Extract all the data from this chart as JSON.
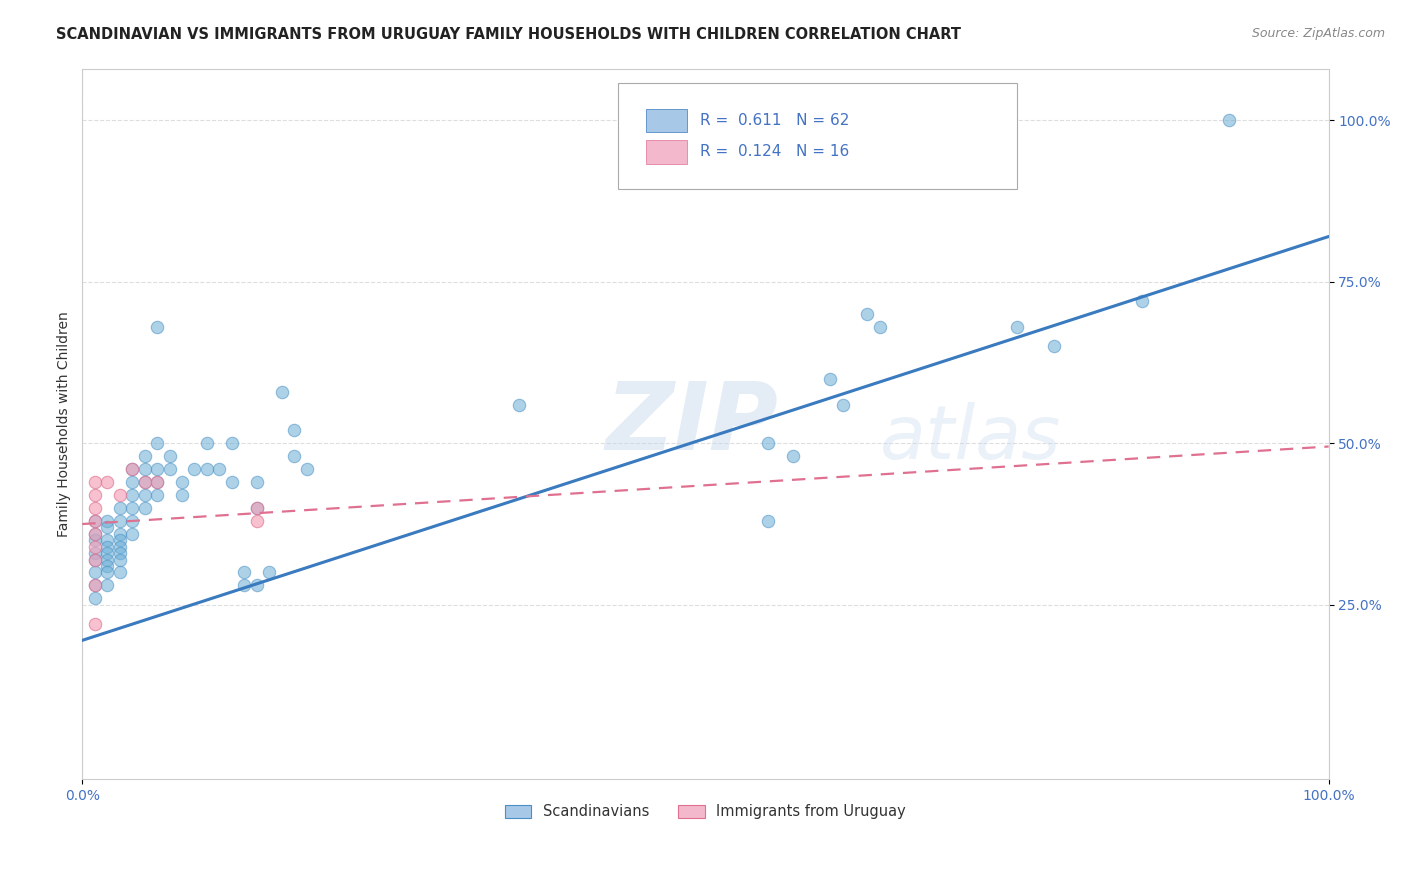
{
  "title": "SCANDINAVIAN VS IMMIGRANTS FROM URUGUAY FAMILY HOUSEHOLDS WITH CHILDREN CORRELATION CHART",
  "source_text": "Source: ZipAtlas.com",
  "ylabel": "Family Households with Children",
  "xlim": [
    0,
    1.0
  ],
  "ylim": [
    -0.02,
    1.08
  ],
  "watermark_zip": "ZIP",
  "watermark_atlas": "atlas",
  "blue_scatter": [
    [
      0.01,
      0.38
    ],
    [
      0.01,
      0.36
    ],
    [
      0.01,
      0.35
    ],
    [
      0.01,
      0.33
    ],
    [
      0.01,
      0.32
    ],
    [
      0.01,
      0.3
    ],
    [
      0.01,
      0.28
    ],
    [
      0.01,
      0.26
    ],
    [
      0.02,
      0.38
    ],
    [
      0.02,
      0.37
    ],
    [
      0.02,
      0.35
    ],
    [
      0.02,
      0.34
    ],
    [
      0.02,
      0.33
    ],
    [
      0.02,
      0.32
    ],
    [
      0.02,
      0.31
    ],
    [
      0.02,
      0.3
    ],
    [
      0.02,
      0.28
    ],
    [
      0.03,
      0.4
    ],
    [
      0.03,
      0.38
    ],
    [
      0.03,
      0.36
    ],
    [
      0.03,
      0.35
    ],
    [
      0.03,
      0.34
    ],
    [
      0.03,
      0.33
    ],
    [
      0.03,
      0.32
    ],
    [
      0.03,
      0.3
    ],
    [
      0.04,
      0.46
    ],
    [
      0.04,
      0.44
    ],
    [
      0.04,
      0.42
    ],
    [
      0.04,
      0.4
    ],
    [
      0.04,
      0.38
    ],
    [
      0.04,
      0.36
    ],
    [
      0.05,
      0.48
    ],
    [
      0.05,
      0.46
    ],
    [
      0.05,
      0.44
    ],
    [
      0.05,
      0.42
    ],
    [
      0.05,
      0.4
    ],
    [
      0.06,
      0.5
    ],
    [
      0.06,
      0.46
    ],
    [
      0.06,
      0.44
    ],
    [
      0.06,
      0.42
    ],
    [
      0.07,
      0.48
    ],
    [
      0.07,
      0.46
    ],
    [
      0.08,
      0.44
    ],
    [
      0.08,
      0.42
    ],
    [
      0.09,
      0.46
    ],
    [
      0.1,
      0.5
    ],
    [
      0.1,
      0.46
    ],
    [
      0.11,
      0.46
    ],
    [
      0.12,
      0.5
    ],
    [
      0.12,
      0.44
    ],
    [
      0.13,
      0.3
    ],
    [
      0.13,
      0.28
    ],
    [
      0.14,
      0.44
    ],
    [
      0.14,
      0.4
    ],
    [
      0.14,
      0.28
    ],
    [
      0.15,
      0.3
    ],
    [
      0.16,
      0.58
    ],
    [
      0.17,
      0.52
    ],
    [
      0.17,
      0.48
    ],
    [
      0.18,
      0.46
    ],
    [
      0.06,
      0.68
    ],
    [
      0.55,
      0.5
    ],
    [
      0.57,
      0.48
    ],
    [
      0.6,
      0.6
    ],
    [
      0.61,
      0.56
    ],
    [
      0.63,
      0.7
    ],
    [
      0.64,
      0.68
    ],
    [
      0.92,
      1.0
    ],
    [
      0.55,
      0.38
    ],
    [
      0.35,
      0.56
    ],
    [
      0.75,
      0.68
    ],
    [
      0.78,
      0.65
    ],
    [
      0.85,
      0.72
    ]
  ],
  "pink_scatter": [
    [
      0.01,
      0.44
    ],
    [
      0.01,
      0.42
    ],
    [
      0.01,
      0.4
    ],
    [
      0.01,
      0.38
    ],
    [
      0.01,
      0.36
    ],
    [
      0.01,
      0.34
    ],
    [
      0.01,
      0.32
    ],
    [
      0.01,
      0.28
    ],
    [
      0.01,
      0.22
    ],
    [
      0.02,
      0.44
    ],
    [
      0.03,
      0.42
    ],
    [
      0.04,
      0.46
    ],
    [
      0.05,
      0.44
    ],
    [
      0.06,
      0.44
    ],
    [
      0.14,
      0.4
    ],
    [
      0.14,
      0.38
    ]
  ],
  "blue_line_x0": 0.0,
  "blue_line_x1": 1.0,
  "blue_line_y0": 0.195,
  "blue_line_y1": 0.82,
  "pink_line_x0": 0.0,
  "pink_line_x1": 1.0,
  "pink_line_y0": 0.375,
  "pink_line_y1": 0.495,
  "blue_scatter_color": "#6baed6",
  "blue_scatter_edge": "#4a90c4",
  "pink_scatter_color": "#f4a0b8",
  "pink_scatter_edge": "#e07090",
  "blue_line_color": "#3a7abf",
  "pink_line_color": "#e07090",
  "legend_blue_face": "#a8c8e8",
  "legend_pink_face": "#f4b8cc",
  "grid_color": "#c8c8c8",
  "title_color": "#222222",
  "label_color": "#4472c4",
  "source_color": "#888888",
  "background": "#ffffff",
  "title_fontsize": 10.5,
  "axis_label_fontsize": 10,
  "tick_fontsize": 10,
  "legend_fontsize": 11
}
